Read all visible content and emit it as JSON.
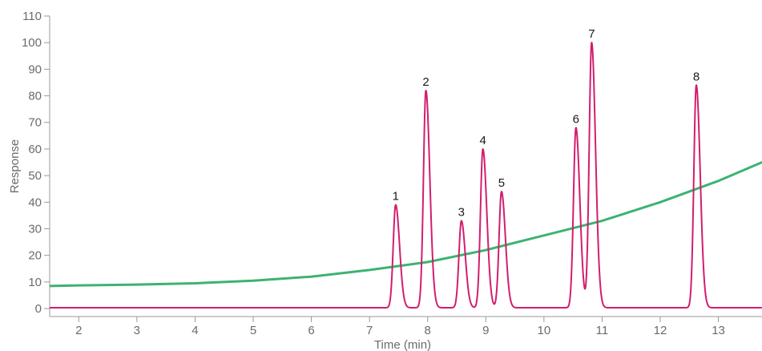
{
  "chart_data": {
    "type": "line",
    "title": "",
    "xlabel": "Time (min)",
    "ylabel": "Response",
    "xlim": [
      1.5,
      13.75
    ],
    "ylim": [
      -3,
      110
    ],
    "xticks": [
      2,
      3,
      4,
      5,
      6,
      7,
      8,
      9,
      10,
      11,
      12,
      13
    ],
    "yticks": [
      0,
      10,
      20,
      30,
      40,
      50,
      60,
      70,
      80,
      90,
      100,
      110
    ],
    "grid": false,
    "legend": "none",
    "series": [
      {
        "color": "#d21e6e",
        "baseline": 0.3,
        "peaks": [
          {
            "label": "1",
            "time": 7.45,
            "height": 39
          },
          {
            "label": "2",
            "time": 7.97,
            "height": 82
          },
          {
            "label": "3",
            "time": 8.58,
            "height": 33
          },
          {
            "label": "4",
            "time": 8.95,
            "height": 60
          },
          {
            "label": "5",
            "time": 9.27,
            "height": 44
          },
          {
            "label": "6",
            "time": 10.55,
            "height": 68
          },
          {
            "label": "7",
            "time": 10.82,
            "height": 100
          },
          {
            "label": "8",
            "time": 12.62,
            "height": 84
          }
        ]
      },
      {
        "color": "#3cb371",
        "x": [
          1.5,
          2,
          3,
          4,
          5,
          6,
          7,
          8,
          9,
          10,
          11,
          12,
          13,
          13.75
        ],
        "y": [
          8.5,
          8.7,
          9.0,
          9.5,
          10.5,
          12,
          14.5,
          17.5,
          22,
          27.5,
          33,
          40,
          48,
          55
        ]
      }
    ]
  }
}
